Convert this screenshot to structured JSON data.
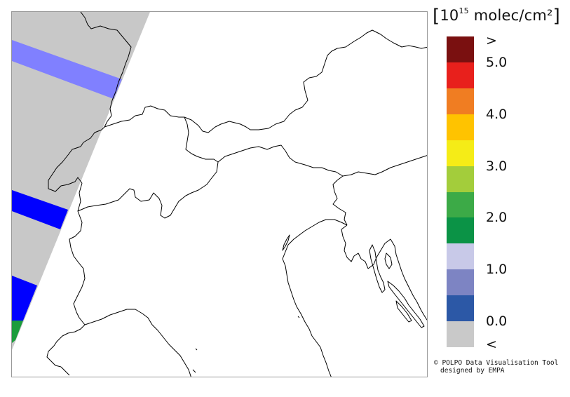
{
  "legend": {
    "title_open": "[",
    "title_base": "10",
    "title_exp": "15",
    "title_unit": "molec/cm²",
    "title_close": "]",
    "colors": [
      "#7a1010",
      "#e8201c",
      "#f07d22",
      "#ffc300",
      "#f5ec17",
      "#a3cd3b",
      "#3caa47",
      "#0b9346",
      "#c8c9e8",
      "#7d84c3",
      "#2c58a6",
      "#c9c9c9"
    ],
    "labels": [
      ">",
      "5.0",
      "4.0",
      "3.0",
      "2.0",
      "1.0",
      "0.0",
      "<"
    ]
  },
  "credit": {
    "line1": "© POLPO Data Visualisation Tool",
    "line2": "designed by EMPA"
  },
  "map": {
    "swath_color": "#c8c8c8",
    "pixel_colors": {
      "light_blue": "#8080ff",
      "blue": "#0000ff",
      "green": "#1c9c3c"
    }
  }
}
